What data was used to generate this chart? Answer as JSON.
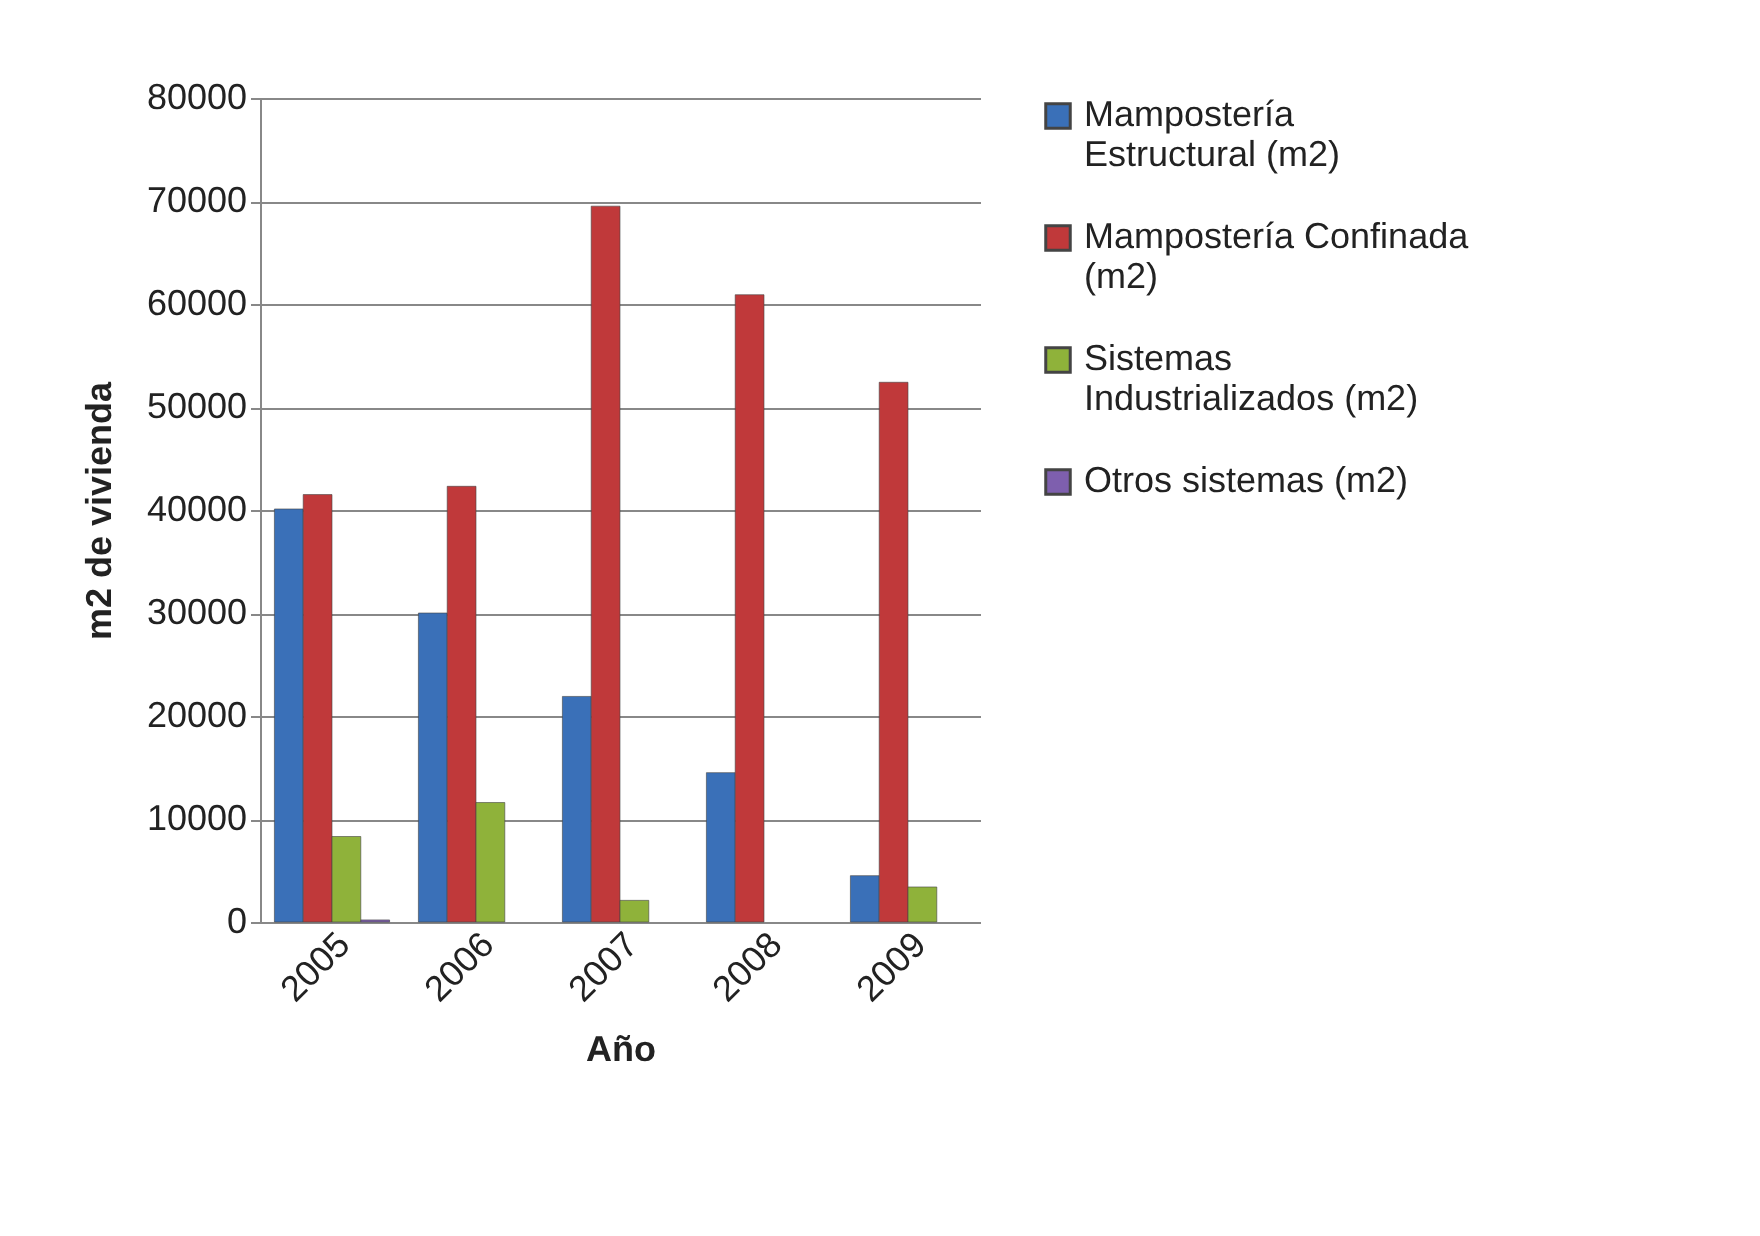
{
  "chart_data": {
    "type": "bar",
    "xlabel": "Año",
    "ylabel": "m2 de vivienda",
    "categories": [
      "2005",
      "2006",
      "2007",
      "2008",
      "2009"
    ],
    "series": [
      {
        "name": "Mampostería Estructural (m2)",
        "color": "#3a70b8",
        "values": [
          40100,
          30000,
          21900,
          14500,
          4500
        ]
      },
      {
        "name": "Mampostería Confinada (m2)",
        "color": "#c0393a",
        "values": [
          41500,
          42300,
          69500,
          60900,
          52400
        ]
      },
      {
        "name": "Sistemas Industrializados (m2)",
        "color": "#8fb23a",
        "values": [
          8300,
          11600,
          2100,
          null,
          3400
        ]
      },
      {
        "name": "Otros sistemas (m2)",
        "color": "#7e5fae",
        "values": [
          200,
          null,
          null,
          null,
          null
        ]
      }
    ],
    "ylim": [
      0,
      80000
    ],
    "yticks": [
      0,
      10000,
      20000,
      30000,
      40000,
      50000,
      60000,
      70000,
      80000
    ],
    "grid": "y",
    "legend": "right"
  }
}
